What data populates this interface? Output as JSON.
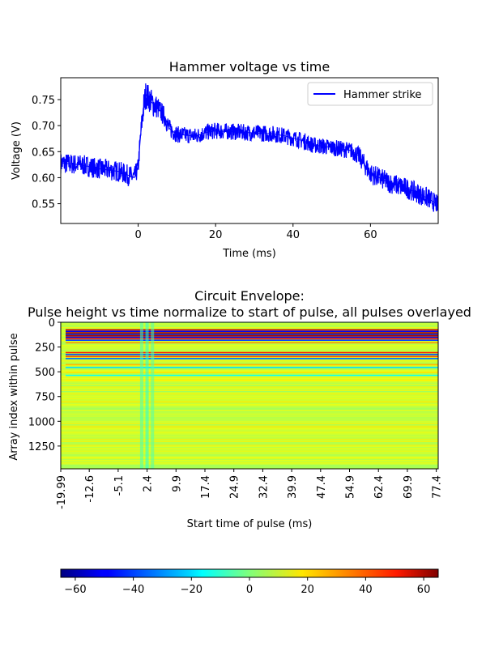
{
  "chart_data": [
    {
      "type": "line",
      "title": "Hammer voltage vs time",
      "xlabel": "Time (ms)",
      "ylabel": "Voltage (V)",
      "xlim": [
        -20,
        77.5
      ],
      "ylim": [
        0.512,
        0.792
      ],
      "xticks": [
        0,
        20,
        40,
        60
      ],
      "xtick_labels": [
        "0",
        "20",
        "40",
        "60"
      ],
      "yticks": [
        0.55,
        0.6,
        0.65,
        0.7,
        0.75
      ],
      "ytick_labels": [
        "0.55",
        "0.60",
        "0.65",
        "0.70",
        "0.75"
      ],
      "legend_position": "top-right",
      "series": [
        {
          "name": "Hammer strike",
          "color": "#0000ff",
          "x": [
            -20,
            -15,
            -10,
            -5,
            -1,
            0,
            0.5,
            1,
            1.5,
            2,
            3,
            4,
            5,
            6,
            7,
            8,
            10,
            12,
            15,
            18,
            20,
            25,
            30,
            35,
            38,
            40,
            43,
            45,
            50,
            55,
            57,
            60,
            65,
            70,
            75,
            77.5
          ],
          "center": [
            0.628,
            0.625,
            0.617,
            0.612,
            0.6,
            0.62,
            0.67,
            0.71,
            0.74,
            0.76,
            0.75,
            0.74,
            0.735,
            0.725,
            0.715,
            0.695,
            0.683,
            0.682,
            0.68,
            0.688,
            0.69,
            0.688,
            0.686,
            0.684,
            0.68,
            0.676,
            0.67,
            0.663,
            0.658,
            0.652,
            0.642,
            0.608,
            0.59,
            0.578,
            0.56,
            0.547
          ],
          "half_spread": [
            0.02,
            0.02,
            0.02,
            0.02,
            0.02,
            0.018,
            0.02,
            0.025,
            0.028,
            0.028,
            0.025,
            0.025,
            0.022,
            0.02,
            0.02,
            0.018,
            0.016,
            0.016,
            0.016,
            0.016,
            0.016,
            0.016,
            0.016,
            0.016,
            0.016,
            0.016,
            0.016,
            0.016,
            0.016,
            0.016,
            0.018,
            0.02,
            0.02,
            0.02,
            0.02,
            0.018
          ]
        }
      ]
    },
    {
      "type": "heatmap",
      "title": "Circuit Envelope:\nPulse height vs time normalize to start of pulse, all pulses overlayed",
      "title_lines": [
        "Circuit Envelope:",
        "Pulse height vs time normalize to start of pulse, all pulses overlayed"
      ],
      "xlabel": "Start time of pulse (ms)",
      "ylabel": "Array index within pulse",
      "xlim": [
        -19.99,
        77.9
      ],
      "ylim": [
        1480,
        0
      ],
      "xtick_labels": [
        "-19.99",
        "-12.6",
        "-5.1",
        "2.4",
        "9.9",
        "17.4",
        "24.9",
        "32.4",
        "39.9",
        "47.4",
        "54.9",
        "62.4",
        "69.9",
        "77.4"
      ],
      "xticks": [
        -19.99,
        -12.6,
        -5.1,
        2.4,
        9.9,
        17.4,
        24.9,
        32.4,
        39.9,
        47.4,
        54.9,
        62.4,
        69.9,
        77.4
      ],
      "yticks": [
        0,
        250,
        500,
        750,
        1000,
        1250
      ],
      "ytick_labels": [
        "0",
        "250",
        "500",
        "750",
        "1000",
        "1250"
      ],
      "colormap": "jet",
      "background_value": 10,
      "bands": [
        {
          "row": 70,
          "value": 55
        },
        {
          "row": 85,
          "value": -50
        },
        {
          "row": 100,
          "value": 60
        },
        {
          "row": 115,
          "value": -55
        },
        {
          "row": 130,
          "value": 58
        },
        {
          "row": 145,
          "value": -52
        },
        {
          "row": 160,
          "value": 45
        },
        {
          "row": 175,
          "value": -40
        },
        {
          "row": 200,
          "value": 30
        },
        {
          "row": 300,
          "value": 45
        },
        {
          "row": 320,
          "value": -40
        },
        {
          "row": 340,
          "value": 40
        },
        {
          "row": 360,
          "value": -35
        },
        {
          "row": 420,
          "value": 25
        },
        {
          "row": 450,
          "value": -20
        },
        {
          "row": 500,
          "value": 20
        },
        {
          "row": 530,
          "value": -15
        },
        {
          "row": 580,
          "value": 18
        }
      ],
      "columns_highlight": [
        {
          "x": 1.0,
          "value": -8
        },
        {
          "x": 2.4,
          "value": -12
        },
        {
          "x": 3.8,
          "value": -6
        }
      ],
      "colorbar": {
        "range": [
          -65,
          65
        ],
        "ticks": [
          -60,
          -40,
          -20,
          0,
          20,
          40,
          60
        ],
        "tick_labels": [
          "−60",
          "−40",
          "−20",
          "0",
          "20",
          "40",
          "60"
        ]
      }
    }
  ]
}
